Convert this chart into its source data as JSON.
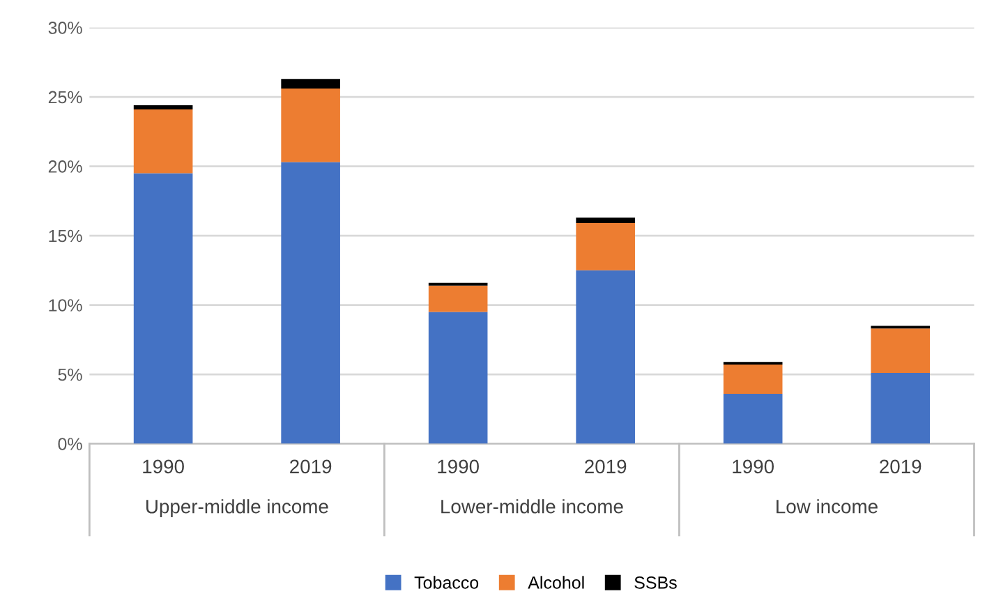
{
  "chart_data": {
    "type": "bar",
    "stacked": true,
    "categories": [
      "1990",
      "2019",
      "1990",
      "2019",
      "1990",
      "2019"
    ],
    "annotations": [
      "Upper-middle income",
      "Lower-middle income",
      "Low income"
    ],
    "series": [
      {
        "name": "Tobacco",
        "color": "#4472c4",
        "values": [
          19.5,
          20.3,
          9.5,
          12.5,
          3.6,
          5.1
        ]
      },
      {
        "name": "Alcohol",
        "color": "#ed7d31",
        "values": [
          4.6,
          5.3,
          1.9,
          3.4,
          2.1,
          3.2
        ]
      },
      {
        "name": "SSBs",
        "color": "#000000",
        "values": [
          0.3,
          0.7,
          0.2,
          0.4,
          0.2,
          0.2
        ]
      }
    ],
    "ylim": [
      0,
      30
    ],
    "yticks": [
      {
        "value": 0,
        "label": "0%"
      },
      {
        "value": 5,
        "label": "5%"
      },
      {
        "value": 10,
        "label": "10%"
      },
      {
        "value": 15,
        "label": "15%"
      },
      {
        "value": 20,
        "label": "20%"
      },
      {
        "value": 25,
        "label": "25%"
      },
      {
        "value": 30,
        "label": "30%"
      }
    ],
    "grid": "y",
    "legend": "bottom"
  }
}
